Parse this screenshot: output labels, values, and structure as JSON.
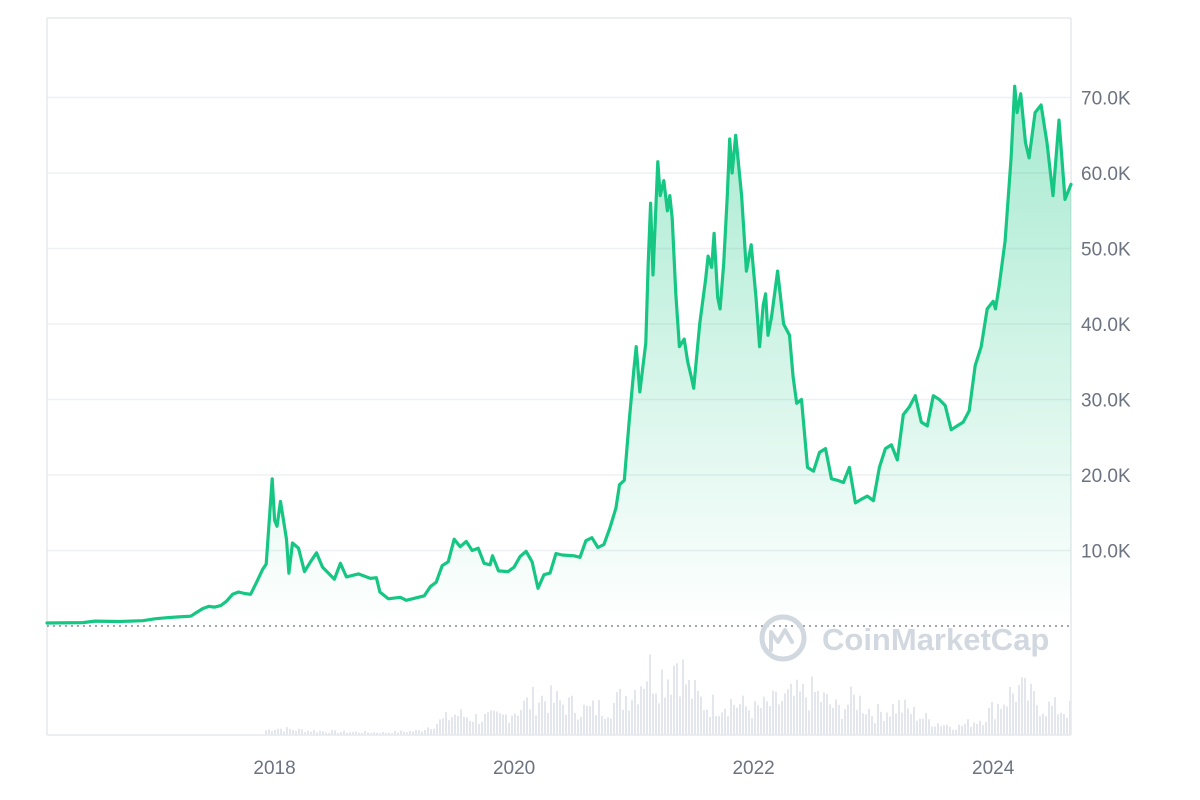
{
  "brand": {
    "watermark": "CoinMarketCap"
  },
  "colors": {
    "line": "#16c784",
    "fill_top": "#16c784",
    "grid": "#eef0f3",
    "frame": "#e6e8ec",
    "axis_text": "#6b7280",
    "volume": "#e3e7ed",
    "baseline_dots": "#6b7280",
    "watermark": "#d2d8e0"
  },
  "chart_data": {
    "type": "area",
    "title": "",
    "xlabel": "",
    "ylabel": "",
    "x_range": [
      2016.1,
      2024.65
    ],
    "ylim": [
      0,
      80000
    ],
    "y_ticks": [
      {
        "value": 10000,
        "label": "10.0K"
      },
      {
        "value": 20000,
        "label": "20.0K"
      },
      {
        "value": 30000,
        "label": "30.0K"
      },
      {
        "value": 40000,
        "label": "40.0K"
      },
      {
        "value": 50000,
        "label": "50.0K"
      },
      {
        "value": 60000,
        "label": "60.0K"
      },
      {
        "value": 70000,
        "label": "70.0K"
      }
    ],
    "x_ticks": [
      {
        "value": 2018,
        "label": "2018"
      },
      {
        "value": 2020,
        "label": "2020"
      },
      {
        "value": 2022,
        "label": "2022"
      },
      {
        "value": 2024,
        "label": "2024"
      }
    ],
    "grid": true,
    "legend": "none",
    "price_series": [
      [
        2016.1,
        400
      ],
      [
        2016.4,
        450
      ],
      [
        2016.5,
        650
      ],
      [
        2016.7,
        600
      ],
      [
        2016.9,
        700
      ],
      [
        2017.0,
        950
      ],
      [
        2017.1,
        1100
      ],
      [
        2017.2,
        1200
      ],
      [
        2017.3,
        1300
      ],
      [
        2017.35,
        1800
      ],
      [
        2017.4,
        2300
      ],
      [
        2017.45,
        2600
      ],
      [
        2017.5,
        2500
      ],
      [
        2017.55,
        2700
      ],
      [
        2017.6,
        3300
      ],
      [
        2017.65,
        4200
      ],
      [
        2017.7,
        4500
      ],
      [
        2017.75,
        4300
      ],
      [
        2017.8,
        4200
      ],
      [
        2017.85,
        5800
      ],
      [
        2017.9,
        7500
      ],
      [
        2017.93,
        8200
      ],
      [
        2017.96,
        15000
      ],
      [
        2017.98,
        19500
      ],
      [
        2018.0,
        14000
      ],
      [
        2018.02,
        13200
      ],
      [
        2018.05,
        16500
      ],
      [
        2018.1,
        11500
      ],
      [
        2018.12,
        7000
      ],
      [
        2018.15,
        11000
      ],
      [
        2018.2,
        10300
      ],
      [
        2018.25,
        7200
      ],
      [
        2018.3,
        8500
      ],
      [
        2018.35,
        9700
      ],
      [
        2018.4,
        7800
      ],
      [
        2018.5,
        6200
      ],
      [
        2018.55,
        8300
      ],
      [
        2018.6,
        6500
      ],
      [
        2018.7,
        6900
      ],
      [
        2018.8,
        6300
      ],
      [
        2018.85,
        6400
      ],
      [
        2018.88,
        4500
      ],
      [
        2018.95,
        3600
      ],
      [
        2019.05,
        3800
      ],
      [
        2019.1,
        3400
      ],
      [
        2019.2,
        3800
      ],
      [
        2019.25,
        4000
      ],
      [
        2019.3,
        5200
      ],
      [
        2019.35,
        5800
      ],
      [
        2019.4,
        8000
      ],
      [
        2019.45,
        8500
      ],
      [
        2019.5,
        11500
      ],
      [
        2019.55,
        10500
      ],
      [
        2019.6,
        11200
      ],
      [
        2019.65,
        10000
      ],
      [
        2019.7,
        10300
      ],
      [
        2019.75,
        8300
      ],
      [
        2019.8,
        8100
      ],
      [
        2019.82,
        9300
      ],
      [
        2019.87,
        7300
      ],
      [
        2019.95,
        7200
      ],
      [
        2020.0,
        7800
      ],
      [
        2020.05,
        9200
      ],
      [
        2020.1,
        9900
      ],
      [
        2020.15,
        8500
      ],
      [
        2020.2,
        5000
      ],
      [
        2020.25,
        6800
      ],
      [
        2020.3,
        7000
      ],
      [
        2020.35,
        9600
      ],
      [
        2020.4,
        9400
      ],
      [
        2020.5,
        9300
      ],
      [
        2020.55,
        9100
      ],
      [
        2020.6,
        11300
      ],
      [
        2020.65,
        11700
      ],
      [
        2020.7,
        10400
      ],
      [
        2020.75,
        10800
      ],
      [
        2020.8,
        13000
      ],
      [
        2020.85,
        15600
      ],
      [
        2020.88,
        18700
      ],
      [
        2020.92,
        19300
      ],
      [
        2020.96,
        27000
      ],
      [
        2021.0,
        34000
      ],
      [
        2021.02,
        37000
      ],
      [
        2021.05,
        31000
      ],
      [
        2021.1,
        37500
      ],
      [
        2021.12,
        48000
      ],
      [
        2021.14,
        56000
      ],
      [
        2021.16,
        46500
      ],
      [
        2021.2,
        61500
      ],
      [
        2021.22,
        57000
      ],
      [
        2021.25,
        59000
      ],
      [
        2021.28,
        55000
      ],
      [
        2021.3,
        57000
      ],
      [
        2021.32,
        54000
      ],
      [
        2021.35,
        44000
      ],
      [
        2021.38,
        37000
      ],
      [
        2021.42,
        38000
      ],
      [
        2021.45,
        35000
      ],
      [
        2021.48,
        33000
      ],
      [
        2021.5,
        31500
      ],
      [
        2021.55,
        40000
      ],
      [
        2021.6,
        46000
      ],
      [
        2021.62,
        49000
      ],
      [
        2021.65,
        47500
      ],
      [
        2021.67,
        52000
      ],
      [
        2021.7,
        43500
      ],
      [
        2021.72,
        42000
      ],
      [
        2021.75,
        48000
      ],
      [
        2021.78,
        57000
      ],
      [
        2021.8,
        64500
      ],
      [
        2021.82,
        60000
      ],
      [
        2021.85,
        65000
      ],
      [
        2021.9,
        57000
      ],
      [
        2021.94,
        47000
      ],
      [
        2021.98,
        50500
      ],
      [
        2022.02,
        43500
      ],
      [
        2022.05,
        37000
      ],
      [
        2022.08,
        42500
      ],
      [
        2022.1,
        44000
      ],
      [
        2022.12,
        38500
      ],
      [
        2022.15,
        41000
      ],
      [
        2022.2,
        47000
      ],
      [
        2022.25,
        40000
      ],
      [
        2022.3,
        38500
      ],
      [
        2022.33,
        33000
      ],
      [
        2022.36,
        29500
      ],
      [
        2022.4,
        30000
      ],
      [
        2022.45,
        21000
      ],
      [
        2022.5,
        20500
      ],
      [
        2022.55,
        23000
      ],
      [
        2022.6,
        23500
      ],
      [
        2022.65,
        19500
      ],
      [
        2022.7,
        19300
      ],
      [
        2022.75,
        19000
      ],
      [
        2022.8,
        21000
      ],
      [
        2022.85,
        16300
      ],
      [
        2022.9,
        16800
      ],
      [
        2022.95,
        17200
      ],
      [
        2023.0,
        16600
      ],
      [
        2023.05,
        21000
      ],
      [
        2023.1,
        23500
      ],
      [
        2023.15,
        24000
      ],
      [
        2023.2,
        22000
      ],
      [
        2023.25,
        28000
      ],
      [
        2023.3,
        29000
      ],
      [
        2023.35,
        30500
      ],
      [
        2023.4,
        27000
      ],
      [
        2023.45,
        26500
      ],
      [
        2023.5,
        30500
      ],
      [
        2023.55,
        30000
      ],
      [
        2023.6,
        29200
      ],
      [
        2023.65,
        26000
      ],
      [
        2023.7,
        26500
      ],
      [
        2023.75,
        27000
      ],
      [
        2023.8,
        28500
      ],
      [
        2023.85,
        34500
      ],
      [
        2023.9,
        37000
      ],
      [
        2023.95,
        42000
      ],
      [
        2024.0,
        43000
      ],
      [
        2024.02,
        42000
      ],
      [
        2024.05,
        45000
      ],
      [
        2024.1,
        51000
      ],
      [
        2024.15,
        62000
      ],
      [
        2024.18,
        71500
      ],
      [
        2024.2,
        68000
      ],
      [
        2024.23,
        70500
      ],
      [
        2024.27,
        64000
      ],
      [
        2024.3,
        62000
      ],
      [
        2024.35,
        68000
      ],
      [
        2024.4,
        69000
      ],
      [
        2024.45,
        64000
      ],
      [
        2024.5,
        57000
      ],
      [
        2024.55,
        67000
      ],
      [
        2024.6,
        56500
      ],
      [
        2024.65,
        58500
      ]
    ],
    "volume_series": [
      [
        2017.9,
        0.05
      ],
      [
        2018.0,
        0.08
      ],
      [
        2018.2,
        0.06
      ],
      [
        2018.5,
        0.04
      ],
      [
        2018.9,
        0.03
      ],
      [
        2019.2,
        0.05
      ],
      [
        2019.4,
        0.18
      ],
      [
        2019.5,
        0.25
      ],
      [
        2019.7,
        0.2
      ],
      [
        2019.9,
        0.22
      ],
      [
        2020.0,
        0.3
      ],
      [
        2020.2,
        0.45
      ],
      [
        2020.4,
        0.38
      ],
      [
        2020.6,
        0.3
      ],
      [
        2020.8,
        0.35
      ],
      [
        2021.0,
        0.55
      ],
      [
        2021.1,
        0.8
      ],
      [
        2021.2,
        0.7
      ],
      [
        2021.3,
        0.75
      ],
      [
        2021.35,
        0.95
      ],
      [
        2021.45,
        0.55
      ],
      [
        2021.6,
        0.35
      ],
      [
        2021.8,
        0.4
      ],
      [
        2022.0,
        0.3
      ],
      [
        2022.3,
        0.45
      ],
      [
        2022.5,
        0.5
      ],
      [
        2022.7,
        0.3
      ],
      [
        2022.85,
        0.45
      ],
      [
        2023.0,
        0.25
      ],
      [
        2023.2,
        0.35
      ],
      [
        2023.5,
        0.15
      ],
      [
        2023.7,
        0.1
      ],
      [
        2023.9,
        0.2
      ],
      [
        2024.1,
        0.45
      ],
      [
        2024.2,
        0.55
      ],
      [
        2024.4,
        0.35
      ],
      [
        2024.6,
        0.3
      ]
    ]
  }
}
